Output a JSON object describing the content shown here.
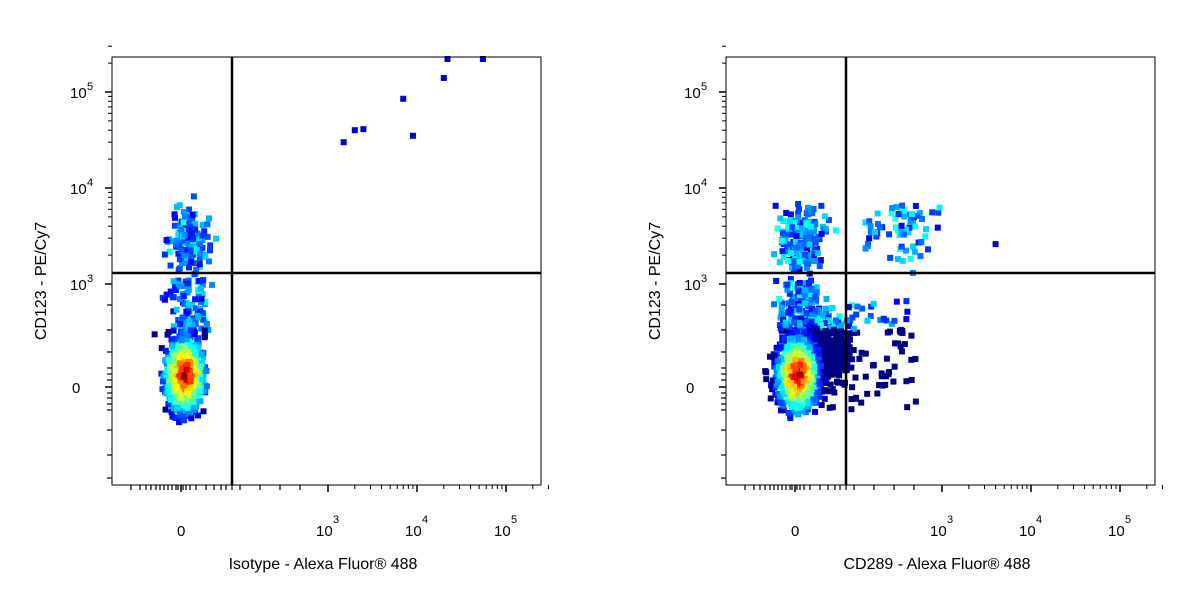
{
  "chart_data": [
    {
      "type": "scatter",
      "title": "",
      "xlabel": "Isotype - Alexa Fluor® 488",
      "ylabel": "CD123 - PE/Cy7",
      "x_scale": "biexponential",
      "y_scale": "biexponential",
      "x_ticks": [
        "0",
        "10^3",
        "10^4",
        "10^5"
      ],
      "y_ticks": [
        "0",
        "10^3",
        "10^4",
        "10^5"
      ],
      "gate": {
        "x": 0,
        "y": 1300
      },
      "density_colormap": "jet",
      "note_points": "events drawn as density-colored dots",
      "sparse_events": [
        [
          1500,
          30000
        ],
        [
          2000,
          40000
        ],
        [
          2500,
          41000
        ],
        [
          7000,
          85000
        ],
        [
          9000,
          35000
        ],
        [
          20000,
          140000
        ],
        [
          22000,
          240000
        ],
        [
          55000,
          240000
        ]
      ]
    },
    {
      "type": "scatter",
      "title": "",
      "xlabel": "CD289 - Alexa Fluor® 488",
      "ylabel": "CD123 - PE/Cy7",
      "x_scale": "biexponential",
      "y_scale": "biexponential",
      "x_ticks": [
        "0",
        "10^3",
        "10^4",
        "10^5"
      ],
      "y_ticks": [
        "0",
        "10^3",
        "10^4",
        "10^5"
      ],
      "gate": {
        "x": 0,
        "y": 1300
      },
      "density_colormap": "jet",
      "sparse_events": [
        [
          4000,
          2600
        ]
      ]
    }
  ],
  "tick_text": {
    "zero": "0",
    "base": "10",
    "exp3": "3",
    "exp4": "4",
    "exp5": "5"
  }
}
